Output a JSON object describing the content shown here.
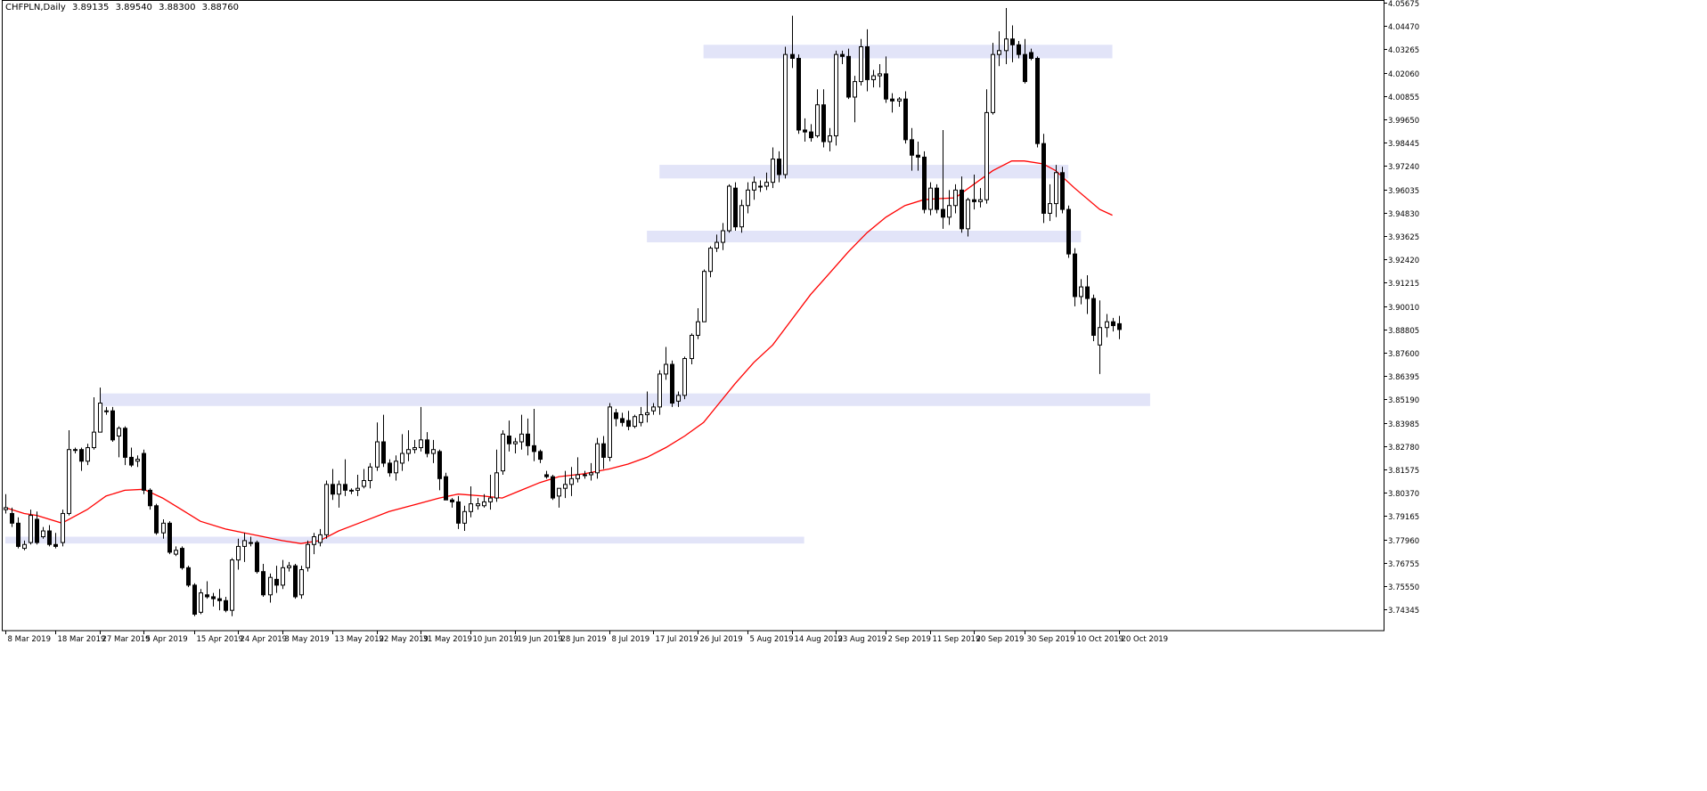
{
  "header": {
    "symbol": "CHFPLN,Daily",
    "open": "3.89135",
    "high": "3.89540",
    "low": "3.88300",
    "close": "3.88760"
  },
  "colors": {
    "background": "#ffffff",
    "frame": "#000000",
    "bull_body": "#ffffff",
    "bear_body": "#000000",
    "candle_outline": "#000000",
    "moving_average": "#ff0000",
    "zone_fill": "#e2e4f8"
  },
  "chart_data": {
    "type": "candlestick",
    "title": "",
    "ylim": [
      3.7325,
      4.05675
    ],
    "y_ticks": [
      "4.05675",
      "4.04470",
      "4.03265",
      "4.02060",
      "4.00855",
      "3.99650",
      "3.98445",
      "3.97240",
      "3.96035",
      "3.94830",
      "3.93625",
      "3.92420",
      "3.91215",
      "3.90010",
      "3.88805",
      "3.87600",
      "3.86395",
      "3.85190",
      "3.83985",
      "3.82780",
      "3.81575",
      "3.80370",
      "3.79165",
      "3.77960",
      "3.76755",
      "3.75550",
      "3.74345"
    ],
    "x_ticks": [
      {
        "label": "8 Mar 2019",
        "index": 0
      },
      {
        "label": "18 Mar 2019",
        "index": 8
      },
      {
        "label": "27 Mar 2019",
        "index": 15
      },
      {
        "label": "5 Apr 2019",
        "index": 22
      },
      {
        "label": "15 Apr 2019",
        "index": 30
      },
      {
        "label": "24 Apr 2019",
        "index": 37
      },
      {
        "label": "3 May 2019",
        "index": 44
      },
      {
        "label": "13 May 2019",
        "index": 52
      },
      {
        "label": "22 May 2019",
        "index": 59
      },
      {
        "label": "31 May 2019",
        "index": 66
      },
      {
        "label": "10 Jun 2019",
        "index": 74
      },
      {
        "label": "19 Jun 2019",
        "index": 81
      },
      {
        "label": "28 Jun 2019",
        "index": 88
      },
      {
        "label": "8 Jul 2019",
        "index": 96
      },
      {
        "label": "17 Jul 2019",
        "index": 103
      },
      {
        "label": "26 Jul 2019",
        "index": 110
      },
      {
        "label": "5 Aug 2019",
        "index": 118
      },
      {
        "label": "14 Aug 2019",
        "index": 125
      },
      {
        "label": "23 Aug 2019",
        "index": 132
      },
      {
        "label": "2 Sep 2019",
        "index": 140
      },
      {
        "label": "11 Sep 2019",
        "index": 147
      },
      {
        "label": "20 Sep 2019",
        "index": 154
      },
      {
        "label": "30 Sep 2019",
        "index": 162
      },
      {
        "label": "10 Oct 2019",
        "index": 170
      },
      {
        "label": "20 Oct 2019",
        "index": 177
      }
    ],
    "candles": [
      [
        3.795,
        3.803,
        3.793,
        3.796
      ],
      [
        3.793,
        3.796,
        3.786,
        3.788
      ],
      [
        3.788,
        3.791,
        3.775,
        3.776
      ],
      [
        3.775,
        3.779,
        3.774,
        3.777
      ],
      [
        3.778,
        3.795,
        3.777,
        3.792
      ],
      [
        3.79,
        3.794,
        3.777,
        3.778
      ],
      [
        3.781,
        3.786,
        3.78,
        3.784
      ],
      [
        3.784,
        3.787,
        3.776,
        3.777
      ],
      [
        3.777,
        3.783,
        3.775,
        3.776
      ],
      [
        3.778,
        3.795,
        3.776,
        3.793
      ],
      [
        3.793,
        3.836,
        3.792,
        3.826
      ],
      [
        3.826,
        3.827,
        3.824,
        3.826
      ],
      [
        3.826,
        3.827,
        3.815,
        3.82
      ],
      [
        3.82,
        3.829,
        3.818,
        3.827
      ],
      [
        3.827,
        3.853,
        3.826,
        3.835
      ],
      [
        3.835,
        3.858,
        3.835,
        3.85
      ],
      [
        3.846,
        3.848,
        3.844,
        3.846
      ],
      [
        3.846,
        3.848,
        3.83,
        3.831
      ],
      [
        3.833,
        3.838,
        3.822,
        3.837
      ],
      [
        3.837,
        3.838,
        3.818,
        3.822
      ],
      [
        3.822,
        3.827,
        3.817,
        3.818
      ],
      [
        3.82,
        3.823,
        3.817,
        3.821
      ],
      [
        3.824,
        3.826,
        3.803,
        3.805
      ],
      [
        3.805,
        3.806,
        3.795,
        3.797
      ],
      [
        3.797,
        3.798,
        3.782,
        3.783
      ],
      [
        3.783,
        3.79,
        3.78,
        3.788
      ],
      [
        3.788,
        3.789,
        3.772,
        3.773
      ],
      [
        3.772,
        3.776,
        3.771,
        3.774
      ],
      [
        3.775,
        3.776,
        3.764,
        3.765
      ],
      [
        3.765,
        3.766,
        3.755,
        3.756
      ],
      [
        3.756,
        3.757,
        3.74,
        3.741
      ],
      [
        3.742,
        3.754,
        3.741,
        3.752
      ],
      [
        3.751,
        3.758,
        3.749,
        3.75
      ],
      [
        3.75,
        3.752,
        3.745,
        3.749
      ],
      [
        3.749,
        3.754,
        3.743,
        3.748
      ],
      [
        3.748,
        3.75,
        3.742,
        3.743
      ],
      [
        3.743,
        3.77,
        3.74,
        3.769
      ],
      [
        3.769,
        3.78,
        3.764,
        3.776
      ],
      [
        3.776,
        3.783,
        3.768,
        3.779
      ],
      [
        3.778,
        3.781,
        3.776,
        3.778
      ],
      [
        3.778,
        3.779,
        3.762,
        3.763
      ],
      [
        3.763,
        3.767,
        3.75,
        3.751
      ],
      [
        3.751,
        3.762,
        3.747,
        3.76
      ],
      [
        3.759,
        3.766,
        3.752,
        3.756
      ],
      [
        3.756,
        3.769,
        3.754,
        3.765
      ],
      [
        3.765,
        3.768,
        3.763,
        3.766
      ],
      [
        3.766,
        3.767,
        3.749,
        3.75
      ],
      [
        3.751,
        3.766,
        3.749,
        3.764
      ],
      [
        3.765,
        3.779,
        3.763,
        3.777
      ],
      [
        3.777,
        3.783,
        3.772,
        3.781
      ],
      [
        3.778,
        3.785,
        3.776,
        3.782
      ],
      [
        3.782,
        3.81,
        3.78,
        3.808
      ],
      [
        3.808,
        3.816,
        3.8,
        3.803
      ],
      [
        3.803,
        3.81,
        3.796,
        3.808
      ],
      [
        3.808,
        3.821,
        3.802,
        3.805
      ],
      [
        3.805,
        3.806,
        3.803,
        3.805
      ],
      [
        3.805,
        3.813,
        3.802,
        3.806
      ],
      [
        3.807,
        3.816,
        3.806,
        3.81
      ],
      [
        3.81,
        3.819,
        3.806,
        3.817
      ],
      [
        3.817,
        3.84,
        3.815,
        3.83
      ],
      [
        3.83,
        3.844,
        3.817,
        3.819
      ],
      [
        3.819,
        3.821,
        3.812,
        3.814
      ],
      [
        3.814,
        3.823,
        3.81,
        3.82
      ],
      [
        3.819,
        3.834,
        3.815,
        3.824
      ],
      [
        3.824,
        3.836,
        3.82,
        3.826
      ],
      [
        3.826,
        3.831,
        3.824,
        3.827
      ],
      [
        3.827,
        3.848,
        3.825,
        3.831
      ],
      [
        3.831,
        3.835,
        3.822,
        3.824
      ],
      [
        3.824,
        3.831,
        3.819,
        3.826
      ],
      [
        3.825,
        3.826,
        3.805,
        3.811
      ],
      [
        3.812,
        3.814,
        3.8,
        3.8
      ],
      [
        3.8,
        3.801,
        3.796,
        3.799
      ],
      [
        3.799,
        3.802,
        3.785,
        3.788
      ],
      [
        3.788,
        3.797,
        3.784,
        3.794
      ],
      [
        3.794,
        3.807,
        3.791,
        3.798
      ],
      [
        3.797,
        3.801,
        3.795,
        3.798
      ],
      [
        3.797,
        3.803,
        3.796,
        3.799
      ],
      [
        3.799,
        3.813,
        3.795,
        3.801
      ],
      [
        3.801,
        3.826,
        3.799,
        3.814
      ],
      [
        3.815,
        3.836,
        3.813,
        3.834
      ],
      [
        3.833,
        3.841,
        3.825,
        3.829
      ],
      [
        3.829,
        3.832,
        3.824,
        3.83
      ],
      [
        3.83,
        3.844,
        3.826,
        3.834
      ],
      [
        3.834,
        3.842,
        3.823,
        3.828
      ],
      [
        3.828,
        3.847,
        3.82,
        3.825
      ],
      [
        3.825,
        3.826,
        3.819,
        3.821
      ],
      [
        3.813,
        3.815,
        3.811,
        3.812
      ],
      [
        3.812,
        3.813,
        3.8,
        3.801
      ],
      [
        3.802,
        3.806,
        3.796,
        3.806
      ],
      [
        3.806,
        3.815,
        3.801,
        3.808
      ],
      [
        3.808,
        3.817,
        3.802,
        3.811
      ],
      [
        3.811,
        3.822,
        3.809,
        3.813
      ],
      [
        3.813,
        3.815,
        3.811,
        3.813
      ],
      [
        3.813,
        3.819,
        3.81,
        3.814
      ],
      [
        3.814,
        3.832,
        3.811,
        3.829
      ],
      [
        3.829,
        3.833,
        3.816,
        3.822
      ],
      [
        3.822,
        3.85,
        3.82,
        3.848
      ],
      [
        3.845,
        3.847,
        3.838,
        3.842
      ],
      [
        3.842,
        3.845,
        3.838,
        3.84
      ],
      [
        3.841,
        3.846,
        3.836,
        3.838
      ],
      [
        3.838,
        3.844,
        3.837,
        3.843
      ],
      [
        3.84,
        3.848,
        3.838,
        3.844
      ],
      [
        3.844,
        3.856,
        3.84,
        3.845
      ],
      [
        3.846,
        3.85,
        3.844,
        3.848
      ],
      [
        3.848,
        3.867,
        3.844,
        3.865
      ],
      [
        3.865,
        3.879,
        3.862,
        3.87
      ],
      [
        3.87,
        3.872,
        3.848,
        3.85
      ],
      [
        3.851,
        3.856,
        3.848,
        3.854
      ],
      [
        3.854,
        3.874,
        3.852,
        3.873
      ],
      [
        3.873,
        3.886,
        3.87,
        3.885
      ],
      [
        3.885,
        3.899,
        3.883,
        3.892
      ],
      [
        3.892,
        3.919,
        3.892,
        3.918
      ],
      [
        3.918,
        3.931,
        3.915,
        3.93
      ],
      [
        3.93,
        3.937,
        3.928,
        3.933
      ],
      [
        3.933,
        3.943,
        3.929,
        3.939
      ],
      [
        3.939,
        3.963,
        3.938,
        3.962
      ],
      [
        3.961,
        3.964,
        3.939,
        3.941
      ],
      [
        3.941,
        3.955,
        3.938,
        3.952
      ],
      [
        3.952,
        3.964,
        3.948,
        3.96
      ],
      [
        3.96,
        3.967,
        3.955,
        3.964
      ],
      [
        3.962,
        3.965,
        3.959,
        3.962
      ],
      [
        3.962,
        3.969,
        3.96,
        3.964
      ],
      [
        3.964,
        3.982,
        3.961,
        3.976
      ],
      [
        3.976,
        3.98,
        3.964,
        3.968
      ],
      [
        3.968,
        4.034,
        3.966,
        4.03
      ],
      [
        4.03,
        4.05,
        4.023,
        4.028
      ],
      [
        4.028,
        4.03,
        3.989,
        3.991
      ],
      [
        3.991,
        3.997,
        3.985,
        3.99
      ],
      [
        3.99,
        3.994,
        3.985,
        3.987
      ],
      [
        3.988,
        4.012,
        3.987,
        4.004
      ],
      [
        4.004,
        4.012,
        3.982,
        3.985
      ],
      [
        3.985,
        3.992,
        3.98,
        3.988
      ],
      [
        3.988,
        4.032,
        3.983,
        4.03
      ],
      [
        4.03,
        4.032,
        4.025,
        4.029
      ],
      [
        4.029,
        4.033,
        4.007,
        4.008
      ],
      [
        4.008,
        4.019,
        3.995,
        4.016
      ],
      [
        4.016,
        4.038,
        4.014,
        4.034
      ],
      [
        4.034,
        4.043,
        4.011,
        4.017
      ],
      [
        4.017,
        4.022,
        4.013,
        4.019
      ],
      [
        4.019,
        4.025,
        4.013,
        4.02
      ],
      [
        4.02,
        4.029,
        4.005,
        4.007
      ],
      [
        4.007,
        4.01,
        4.0,
        4.006
      ],
      [
        4.006,
        4.008,
        4.003,
        4.007
      ],
      [
        4.007,
        4.011,
        3.984,
        3.986
      ],
      [
        3.986,
        3.992,
        3.97,
        3.978
      ],
      [
        3.978,
        3.985,
        3.97,
        3.977
      ],
      [
        3.977,
        3.98,
        3.948,
        3.95
      ],
      [
        3.95,
        3.964,
        3.947,
        3.961
      ],
      [
        3.961,
        3.963,
        3.948,
        3.95
      ],
      [
        3.95,
        3.991,
        3.94,
        3.946
      ],
      [
        3.946,
        3.96,
        3.942,
        3.952
      ],
      [
        3.952,
        3.963,
        3.948,
        3.96
      ],
      [
        3.96,
        3.967,
        3.938,
        3.94
      ],
      [
        3.94,
        3.956,
        3.936,
        3.955
      ],
      [
        3.955,
        3.968,
        3.95,
        3.954
      ],
      [
        3.954,
        3.961,
        3.951,
        3.955
      ],
      [
        3.955,
        4.012,
        3.953,
        4.0
      ],
      [
        4.0,
        4.036,
        3.999,
        4.03
      ],
      [
        4.03,
        4.042,
        4.024,
        4.032
      ],
      [
        4.032,
        4.054,
        4.025,
        4.038
      ],
      [
        4.038,
        4.045,
        4.026,
        4.035
      ],
      [
        4.035,
        4.037,
        4.028,
        4.03
      ],
      [
        4.03,
        4.038,
        4.015,
        4.016
      ],
      [
        4.031,
        4.033,
        4.027,
        4.028
      ],
      [
        4.028,
        4.029,
        3.982,
        3.984
      ],
      [
        3.984,
        3.989,
        3.943,
        3.948
      ],
      [
        3.948,
        3.963,
        3.944,
        3.953
      ],
      [
        3.953,
        3.973,
        3.946,
        3.969
      ],
      [
        3.969,
        3.972,
        3.948,
        3.95
      ],
      [
        3.95,
        3.952,
        3.925,
        3.927
      ],
      [
        3.927,
        3.93,
        3.9,
        3.905
      ],
      [
        3.905,
        3.914,
        3.901,
        3.91
      ],
      [
        3.91,
        3.916,
        3.896,
        3.904
      ],
      [
        3.904,
        3.906,
        3.882,
        3.885
      ],
      [
        3.88,
        3.903,
        3.865,
        3.889
      ],
      [
        3.889,
        3.896,
        3.884,
        3.892
      ],
      [
        3.892,
        3.894,
        3.887,
        3.89
      ],
      [
        3.891,
        3.895,
        3.883,
        3.888
      ]
    ],
    "moving_average": {
      "name": "",
      "values": [
        [
          0,
          3.796
        ],
        [
          3,
          3.793
        ],
        [
          5,
          3.792
        ],
        [
          9,
          3.788
        ],
        [
          13,
          3.795
        ],
        [
          16,
          3.802
        ],
        [
          19,
          3.805
        ],
        [
          22,
          3.8055
        ],
        [
          25,
          3.801
        ],
        [
          28,
          3.795
        ],
        [
          31,
          3.789
        ],
        [
          35,
          3.785
        ],
        [
          38,
          3.783
        ],
        [
          41,
          3.781
        ],
        [
          44,
          3.779
        ],
        [
          47,
          3.7775
        ],
        [
          50,
          3.779
        ],
        [
          53,
          3.784
        ],
        [
          57,
          3.789
        ],
        [
          61,
          3.794
        ],
        [
          65,
          3.7975
        ],
        [
          69,
          3.801
        ],
        [
          72,
          3.803
        ],
        [
          76,
          3.802
        ],
        [
          79,
          3.801
        ],
        [
          82,
          3.805
        ],
        [
          85,
          3.809
        ],
        [
          88,
          3.812
        ],
        [
          92,
          3.8135
        ],
        [
          96,
          3.816
        ],
        [
          99,
          3.8185
        ],
        [
          102,
          3.822
        ],
        [
          105,
          3.827
        ],
        [
          108,
          3.833
        ],
        [
          111,
          3.84
        ],
        [
          113,
          3.848
        ],
        [
          116,
          3.86
        ],
        [
          119,
          3.871
        ],
        [
          122,
          3.88
        ],
        [
          125,
          3.893
        ],
        [
          128,
          3.906
        ],
        [
          131,
          3.917
        ],
        [
          134,
          3.928
        ],
        [
          137,
          3.938
        ],
        [
          140,
          3.946
        ],
        [
          143,
          3.952
        ],
        [
          146,
          3.955
        ],
        [
          148,
          3.9555
        ],
        [
          151,
          3.956
        ],
        [
          154,
          3.963
        ],
        [
          157,
          3.97
        ],
        [
          160,
          3.975
        ],
        [
          162,
          3.975
        ],
        [
          165,
          3.9735
        ],
        [
          167,
          3.97
        ],
        [
          170,
          3.961
        ],
        [
          174,
          3.95
        ],
        [
          176,
          3.947
        ]
      ]
    },
    "zones": [
      {
        "from_index": 0,
        "to_index": 127,
        "low": 3.7775,
        "high": 3.781
      },
      {
        "from_index": 15,
        "to_index": 182,
        "low": 3.8485,
        "high": 3.855
      },
      {
        "from_index": 102,
        "to_index": 171,
        "low": 3.933,
        "high": 3.939
      },
      {
        "from_index": 104,
        "to_index": 169,
        "low": 3.966,
        "high": 3.973
      },
      {
        "from_index": 111,
        "to_index": 176,
        "low": 4.028,
        "high": 4.035
      }
    ]
  }
}
